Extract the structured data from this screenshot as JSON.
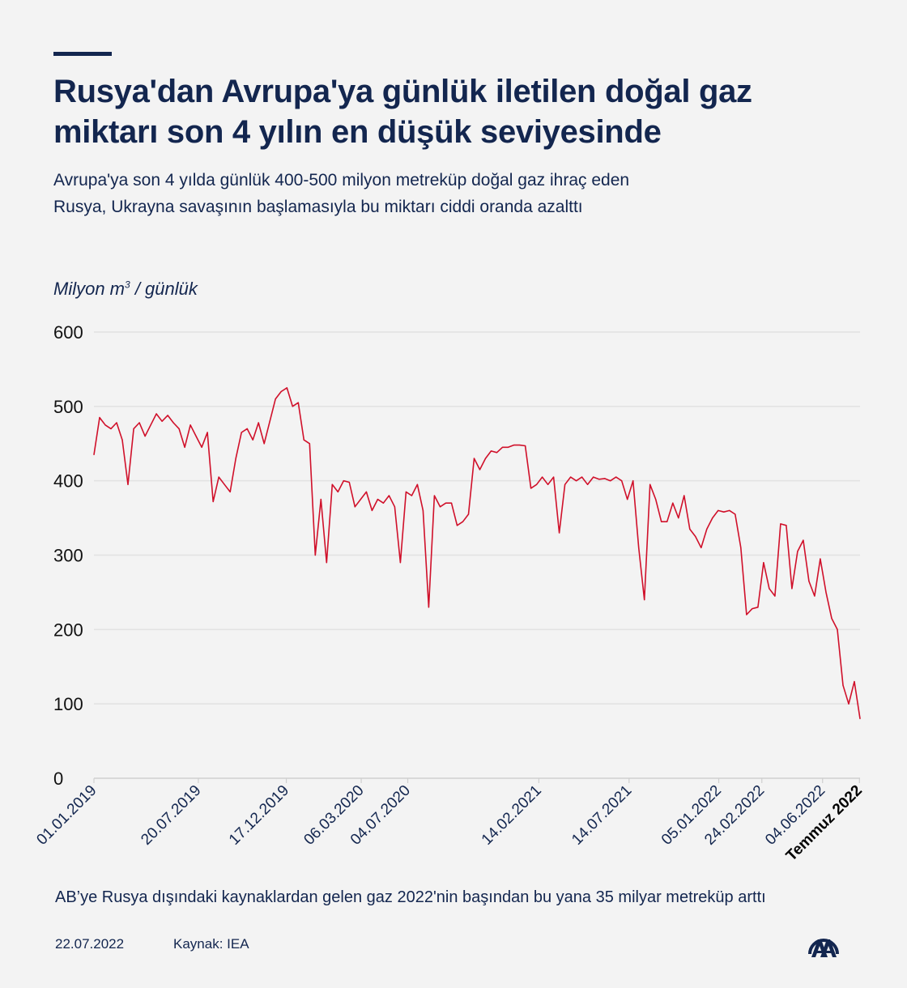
{
  "header": {
    "title": "Rusya'dan Avrupa'ya günlük iletilen doğal gaz miktarı son 4 yılın en düşük seviyesinde",
    "subtitle": "Avrupa'ya son 4 yılda günlük 400-500 milyon metreküp doğal gaz ihraç eden Rusya, Ukrayna savaşının başlamasıyla bu miktarı ciddi oranda azalttı"
  },
  "chart_data": {
    "type": "line",
    "ylabel_main": "Milyon m",
    "ylabel_sup": "3",
    "ylabel_rest": " / günlük",
    "ylim": [
      0,
      600
    ],
    "y_ticks": [
      0,
      100,
      200,
      300,
      400,
      500,
      600
    ],
    "grid": true,
    "line_color": "#d0102a",
    "x_ticks": [
      {
        "label": "01.01.2019",
        "index": 0
      },
      {
        "label": "20.07.2019",
        "index": 18.4
      },
      {
        "label": "17.12.2019",
        "index": 33.9
      },
      {
        "label": "06.03.2020",
        "index": 47.1
      },
      {
        "label": "04.07.2020",
        "index": 55.3
      },
      {
        "label": "14.02.2021",
        "index": 78.4
      },
      {
        "label": "14.07.2021",
        "index": 94.3
      },
      {
        "label": "05.01.2022",
        "index": 110.1
      },
      {
        "label": "24.02.2022",
        "index": 117.7
      },
      {
        "label": "04.06.2022",
        "index": 128.4
      },
      {
        "label": "Temmuz 2022",
        "index": 134.9,
        "bold": true
      }
    ],
    "values": [
      435,
      485,
      475,
      470,
      478,
      455,
      395,
      470,
      478,
      460,
      475,
      490,
      480,
      488,
      478,
      470,
      445,
      475,
      460,
      445,
      465,
      372,
      405,
      395,
      385,
      430,
      465,
      470,
      455,
      478,
      450,
      480,
      510,
      520,
      525,
      500,
      505,
      455,
      450,
      300,
      375,
      290,
      395,
      385,
      400,
      398,
      365,
      375,
      385,
      360,
      375,
      370,
      380,
      365,
      290,
      385,
      380,
      395,
      360,
      230,
      380,
      365,
      370,
      370,
      340,
      345,
      355,
      430,
      415,
      430,
      440,
      438,
      445,
      445,
      448,
      448,
      447,
      390,
      395,
      405,
      395,
      405,
      330,
      395,
      405,
      400,
      405,
      395,
      405,
      402,
      403,
      400,
      405,
      400,
      375,
      400,
      310,
      240,
      395,
      375,
      345,
      345,
      370,
      350,
      380,
      335,
      325,
      310,
      335,
      350,
      360,
      358,
      360,
      355,
      310,
      220,
      228,
      230,
      290,
      255,
      245,
      342,
      340,
      255,
      305,
      320,
      265,
      245,
      295,
      250,
      215,
      200,
      125,
      100,
      130,
      80
    ]
  },
  "footer": {
    "note": "AB’ye Rusya dışındaki kaynaklardan gelen gaz 2022'nin başından bu yana 35 milyar metreküp arttı",
    "date": "22.07.2022",
    "source": "Kaynak: IEA",
    "logo_text": "AA"
  }
}
